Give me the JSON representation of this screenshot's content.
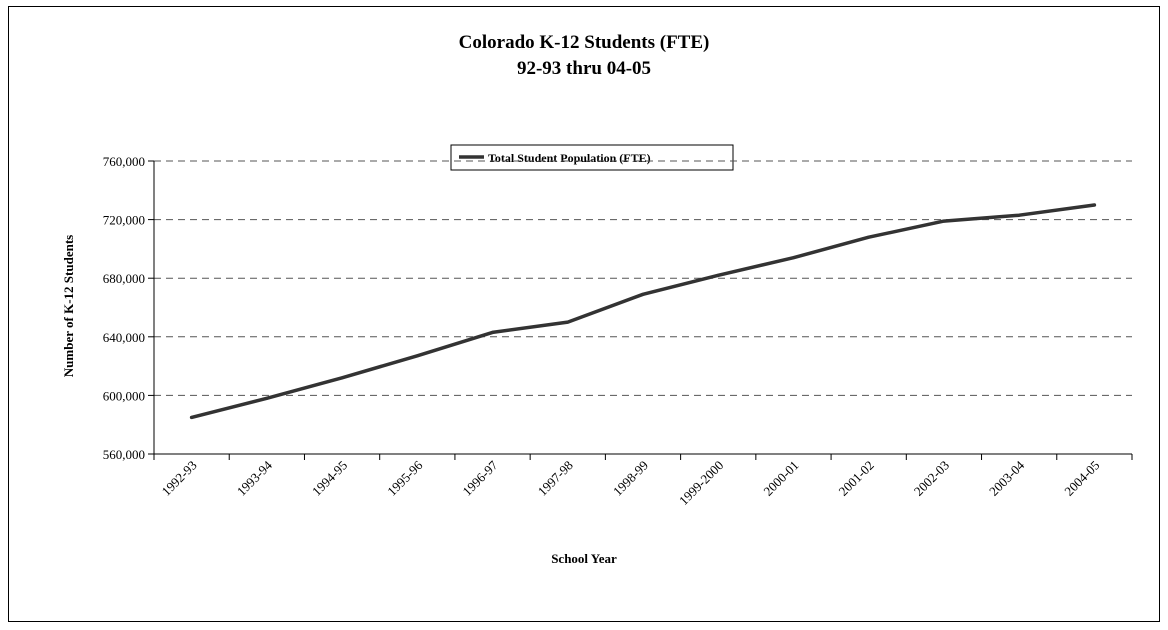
{
  "chart_data": {
    "type": "line",
    "title": "Colorado K-12 Students (FTE)",
    "subtitle": "92-93 thru 04-05",
    "xlabel": "School Year",
    "ylabel": "Number of K-12 Students",
    "ylim": [
      560000,
      760000
    ],
    "yticks": [
      560000,
      600000,
      640000,
      680000,
      720000,
      760000
    ],
    "ytick_labels": [
      "560,000",
      "600,000",
      "640,000",
      "680,000",
      "720,000",
      "760,000"
    ],
    "categories": [
      "1992-93",
      "1993-94",
      "1994-95",
      "1995-96",
      "1996-97",
      "1997-98",
      "1998-99",
      "1999-2000",
      "2000-01",
      "2001-02",
      "2002-03",
      "2003-04",
      "2004-05"
    ],
    "series": [
      {
        "name": "Total Student Population (FTE)",
        "values": [
          585000,
          598000,
          612000,
          627000,
          643000,
          650000,
          669000,
          682000,
          694000,
          708000,
          719000,
          723000,
          730000
        ]
      }
    ],
    "grid": "horizontal dashed",
    "legend_position": "top-center",
    "colors": {
      "line": "#333333",
      "grid": "#555555"
    }
  }
}
